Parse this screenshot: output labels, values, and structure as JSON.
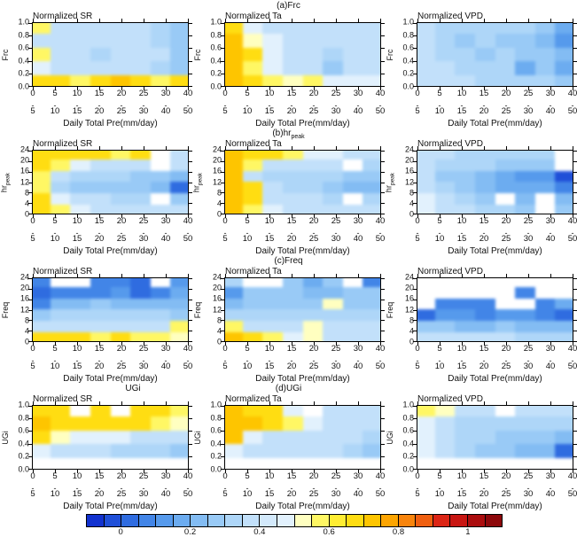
{
  "chart_data": {
    "type": "heatmap",
    "xlabel": "Daily Total Pre(mm/day)",
    "xticks_top": [
      "0",
      "5",
      "10",
      "15",
      "20",
      "25",
      "30",
      "40"
    ],
    "xticks_bottom": [
      "5",
      "10",
      "15",
      "20",
      "25",
      "30",
      "40",
      "50"
    ],
    "dash": "-",
    "rows": [
      {
        "id": "a",
        "header": "(a)Frc",
        "header_sub": "",
        "left_header": "",
        "ylabel": "Frc",
        "ylabel_sub": "",
        "yticks": [
          "1.0",
          "0.8",
          "0.6",
          "0.4",
          "0.2",
          "0.0"
        ],
        "panels": [
          {
            "title": "Normalized SR",
            "grid": [
              [
                13,
                9,
                9,
                9,
                9,
                9,
                8,
                7
              ],
              [
                9,
                9,
                9,
                9,
                9,
                9,
                8,
                7
              ],
              [
                13,
                9,
                9,
                8,
                9,
                9,
                9,
                7
              ],
              [
                11,
                9,
                9,
                9,
                9,
                9,
                8,
                7
              ],
              [
                15,
                15,
                13,
                15,
                16,
                15,
                13,
                15
              ]
            ]
          },
          {
            "title": "Normalized Ta",
            "grid": [
              [
                15,
                11,
                9,
                9,
                9,
                9,
                9,
                9
              ],
              [
                16,
                12,
                11,
                9,
                9,
                9,
                9,
                9
              ],
              [
                16,
                15,
                11,
                9,
                9,
                8,
                9,
                9
              ],
              [
                16,
                13,
                11,
                9,
                9,
                7,
                9,
                9
              ],
              [
                16,
                15,
                13,
                12,
                13,
                11,
                11,
                11
              ]
            ]
          },
          {
            "title": "Normalized VPD",
            "grid": [
              [
                9,
                8,
                8,
                8,
                8,
                8,
                7,
                5
              ],
              [
                9,
                8,
                7,
                8,
                7,
                7,
                6,
                4
              ],
              [
                9,
                8,
                8,
                7,
                8,
                7,
                7,
                6
              ],
              [
                9,
                9,
                8,
                8,
                8,
                5,
                7,
                5
              ],
              [
                9,
                9,
                9,
                8,
                8,
                8,
                8,
                7
              ]
            ]
          }
        ]
      },
      {
        "id": "b",
        "header": "(b)hr",
        "header_sub": "peak",
        "left_header": "",
        "ylabel": "hr",
        "ylabel_sub": "peak",
        "yticks": [
          "24",
          "20",
          "16",
          "12",
          "8",
          "4",
          "0"
        ],
        "panels": [
          {
            "title": "Normalized SR",
            "grid": [
              [
                15,
                15,
                15,
                15,
                13,
                15,
                null,
                9
              ],
              [
                15,
                13,
                11,
                9,
                9,
                9,
                null,
                9
              ],
              [
                13,
                9,
                8,
                8,
                8,
                7,
                7,
                6
              ],
              [
                13,
                8,
                7,
                7,
                7,
                7,
                6,
                2
              ],
              [
                15,
                11,
                9,
                9,
                8,
                8,
                null,
                7
              ],
              [
                15,
                13,
                11,
                9,
                9,
                9,
                9,
                9
              ]
            ]
          },
          {
            "title": "Normalized Ta",
            "grid": [
              [
                16,
                15,
                15,
                13,
                11,
                11,
                9,
                9
              ],
              [
                16,
                13,
                9,
                9,
                9,
                9,
                null,
                8
              ],
              [
                16,
                9,
                8,
                8,
                8,
                8,
                7,
                7
              ],
              [
                16,
                15,
                9,
                8,
                8,
                7,
                6,
                6
              ],
              [
                16,
                15,
                9,
                9,
                9,
                8,
                null,
                8
              ],
              [
                16,
                13,
                11,
                9,
                9,
                9,
                9,
                9
              ]
            ]
          },
          {
            "title": "Normalized VPD",
            "grid": [
              [
                9,
                9,
                8,
                8,
                8,
                8,
                8,
                null
              ],
              [
                9,
                8,
                8,
                8,
                7,
                7,
                7,
                null
              ],
              [
                9,
                7,
                7,
                6,
                5,
                4,
                4,
                1
              ],
              [
                9,
                8,
                7,
                6,
                5,
                5,
                5,
                3
              ],
              [
                11,
                9,
                8,
                7,
                null,
                6,
                null,
                6
              ],
              [
                11,
                9,
                9,
                8,
                8,
                7,
                null,
                7
              ]
            ]
          }
        ]
      },
      {
        "id": "c",
        "header": "(c)Freq",
        "header_sub": "",
        "left_header": "",
        "ylabel": "Freq",
        "ylabel_sub": "",
        "yticks": [
          "24",
          "20",
          "16",
          "12",
          "8",
          "4",
          "0"
        ],
        "panels": [
          {
            "title": "Normalized SR",
            "grid": [
              [
                3,
                null,
                null,
                3,
                3,
                2,
                null,
                4
              ],
              [
                2,
                3,
                3,
                3,
                4,
                2,
                3,
                5
              ],
              [
                3,
                6,
                6,
                7,
                6,
                6,
                6,
                6
              ],
              [
                7,
                8,
                8,
                8,
                8,
                8,
                8,
                7
              ],
              [
                9,
                9,
                9,
                9,
                9,
                9,
                9,
                13
              ],
              [
                15,
                15,
                15,
                13,
                15,
                13,
                13,
                12
              ]
            ]
          },
          {
            "title": "Normalized Ta",
            "grid": [
              [
                8,
                null,
                null,
                7,
                5,
                7,
                null,
                3
              ],
              [
                4,
                7,
                7,
                7,
                6,
                6,
                7,
                7
              ],
              [
                6,
                7,
                7,
                7,
                7,
                12,
                7,
                7
              ],
              [
                8,
                8,
                8,
                8,
                8,
                8,
                8,
                8
              ],
              [
                13,
                9,
                9,
                9,
                12,
                9,
                9,
                9
              ],
              [
                16,
                15,
                13,
                11,
                12,
                9,
                9,
                9
              ]
            ]
          },
          {
            "title": "Normalized VPD",
            "grid": [
              [
                null,
                null,
                null,
                null,
                null,
                null,
                null,
                null
              ],
              [
                null,
                null,
                null,
                null,
                null,
                3,
                null,
                null
              ],
              [
                null,
                3,
                3,
                3,
                null,
                null,
                3,
                5
              ],
              [
                2,
                4,
                4,
                3,
                4,
                4,
                3,
                2
              ],
              [
                7,
                7,
                6,
                6,
                7,
                6,
                6,
                6
              ],
              [
                9,
                9,
                9,
                9,
                9,
                8,
                8,
                8
              ]
            ]
          }
        ]
      },
      {
        "id": "d",
        "header": "(d)UGi",
        "header_sub": "",
        "left_header": "UGi",
        "ylabel": "UGi",
        "ylabel_sub": "",
        "yticks": [
          "1.0",
          "0.8",
          "0.6",
          "0.4",
          "0.2",
          "0.0"
        ],
        "panels": [
          {
            "title": "Normalized SR",
            "grid": [
              [
                15,
                15,
                null,
                15,
                null,
                15,
                15,
                13
              ],
              [
                16,
                15,
                15,
                15,
                15,
                15,
                13,
                12
              ],
              [
                15,
                12,
                11,
                11,
                11,
                9,
                9,
                9
              ],
              [
                11,
                9,
                9,
                9,
                8,
                8,
                8,
                7
              ],
              [
                null,
                null,
                null,
                null,
                null,
                null,
                null,
                null
              ]
            ]
          },
          {
            "title": "Normalized Ta",
            "grid": [
              [
                16,
                15,
                15,
                11,
                null,
                9,
                9,
                9
              ],
              [
                16,
                16,
                15,
                13,
                11,
                9,
                9,
                9
              ],
              [
                16,
                11,
                9,
                9,
                9,
                9,
                9,
                8
              ],
              [
                11,
                9,
                9,
                9,
                9,
                9,
                8,
                7
              ],
              [
                null,
                null,
                null,
                null,
                null,
                null,
                null,
                null
              ]
            ]
          },
          {
            "title": "Normalized VPD",
            "grid": [
              [
                13,
                12,
                9,
                9,
                null,
                9,
                9,
                9
              ],
              [
                11,
                9,
                8,
                8,
                8,
                8,
                8,
                8
              ],
              [
                11,
                9,
                8,
                8,
                7,
                7,
                7,
                6
              ],
              [
                11,
                9,
                8,
                7,
                7,
                6,
                6,
                2
              ],
              [
                null,
                null,
                null,
                null,
                null,
                null,
                null,
                null
              ]
            ]
          }
        ]
      }
    ],
    "colorbar": {
      "palette": [
        "#1232cf",
        "#1f4fd8",
        "#2f6ce0",
        "#4285e7",
        "#569aec",
        "#6cacf0",
        "#83bcf3",
        "#99caf6",
        "#aed6f8",
        "#c2e0fa",
        "#d3e9fb",
        "#e2f1fd",
        "#ffffc0",
        "#fff764",
        "#ffed32",
        "#ffdd12",
        "#fec500",
        "#fda501",
        "#f8840c",
        "#ef5f10",
        "#dc2515",
        "#c81612",
        "#ab0d0e",
        "#8d080b"
      ],
      "tick_labels": [
        "0",
        "0.2",
        "0.4",
        "0.6",
        "0.8",
        "1"
      ],
      "tick_positions": [
        0.0833,
        0.25,
        0.4167,
        0.5833,
        0.75,
        0.9167
      ]
    }
  }
}
